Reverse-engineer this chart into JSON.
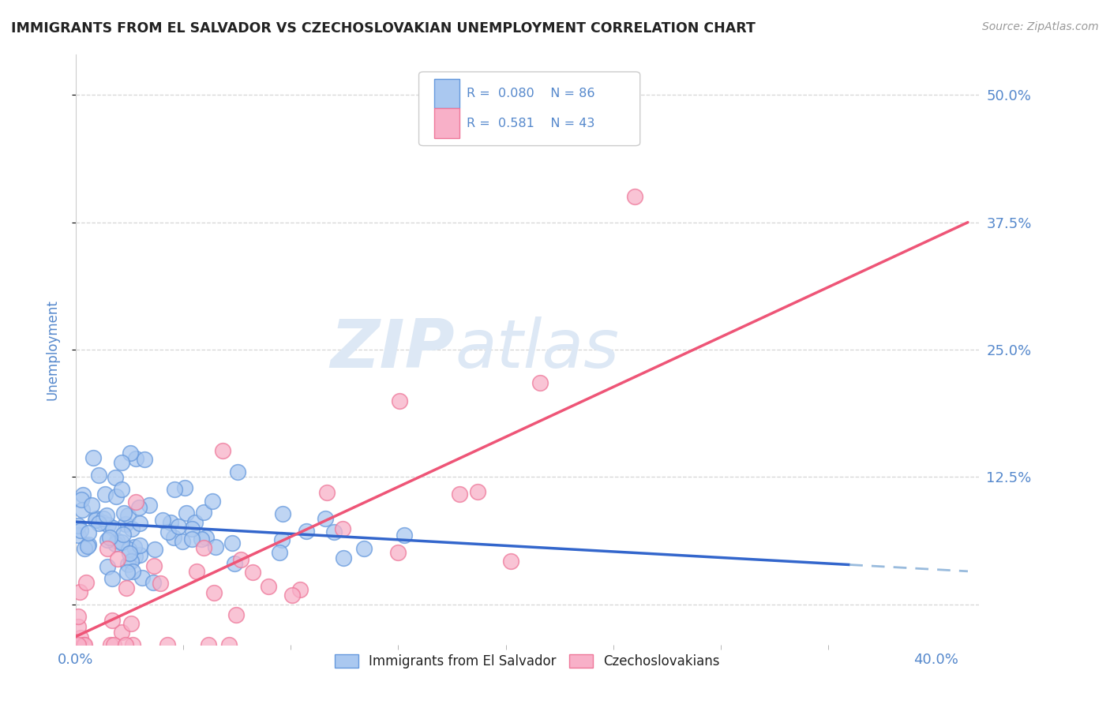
{
  "title": "IMMIGRANTS FROM EL SALVADOR VS CZECHOSLOVAKIAN UNEMPLOYMENT CORRELATION CHART",
  "source": "Source: ZipAtlas.com",
  "ylabel": "Unemployment",
  "xlim": [
    0.0,
    0.42
  ],
  "ylim": [
    -0.04,
    0.54
  ],
  "yticks": [
    0.0,
    0.125,
    0.25,
    0.375,
    0.5
  ],
  "ytick_labels": [
    "",
    "12.5%",
    "25.0%",
    "37.5%",
    "50.0%"
  ],
  "xtick_left_label": "0.0%",
  "xtick_right_label": "40.0%",
  "series1_color": "#aac8f0",
  "series1_edge": "#6699dd",
  "series2_color": "#f8b0c8",
  "series2_edge": "#ee7799",
  "trendline1_color": "#3366cc",
  "trendline2_color": "#ee5577",
  "trendline1_dash_color": "#99bbdd",
  "R1": 0.08,
  "N1": 86,
  "R2": 0.581,
  "N2": 43,
  "legend1_label": "Immigrants from El Salvador",
  "legend2_label": "Czechoslovakians",
  "watermark_zip": "ZIP",
  "watermark_atlas": "atlas",
  "title_color": "#222222",
  "tick_label_color": "#5588cc",
  "background_color": "#ffffff",
  "grid_color": "#cccccc",
  "trendline1_end": 0.36,
  "trendline1_slope": 0.018,
  "trendline1_intercept": 0.068,
  "trendline2_slope": 0.72,
  "trendline2_intercept": -0.02
}
